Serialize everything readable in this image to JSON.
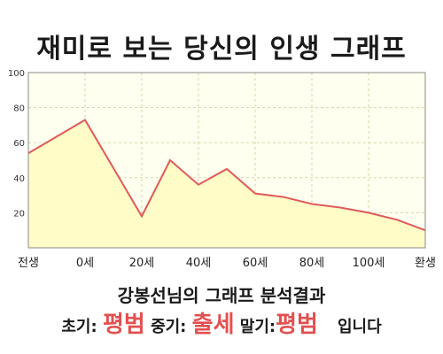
{
  "title": "재미로 보는 당신의 인생 그래프",
  "chart_data": {
    "type": "area",
    "x": [
      0,
      1,
      2,
      2.5,
      3,
      3.5,
      4,
      4.5,
      5,
      5.5,
      6,
      6.5,
      7
    ],
    "values": [
      54,
      73,
      18,
      50,
      36,
      45,
      31,
      29,
      25,
      23,
      20,
      16,
      10
    ],
    "x_tick_labels": [
      "전생",
      "0세",
      "20세",
      "40세",
      "60세",
      "80세",
      "100세",
      "환생"
    ],
    "y_ticks": [
      20,
      40,
      60,
      80,
      100
    ],
    "ylim": [
      0,
      100
    ],
    "grid": true,
    "colors": {
      "line": "#e05a5a",
      "fill": "#fffcc7",
      "grid": "#d8d4a8",
      "plot_bg": "#fffff0"
    }
  },
  "result": {
    "title": "강봉선님의 그래프 분석결과",
    "early_label": "초기:",
    "early_value": "평범",
    "mid_label": "중기:",
    "mid_value": "출세",
    "late_label": "말기:",
    "late_value": "평범",
    "suffix": "입니다"
  }
}
